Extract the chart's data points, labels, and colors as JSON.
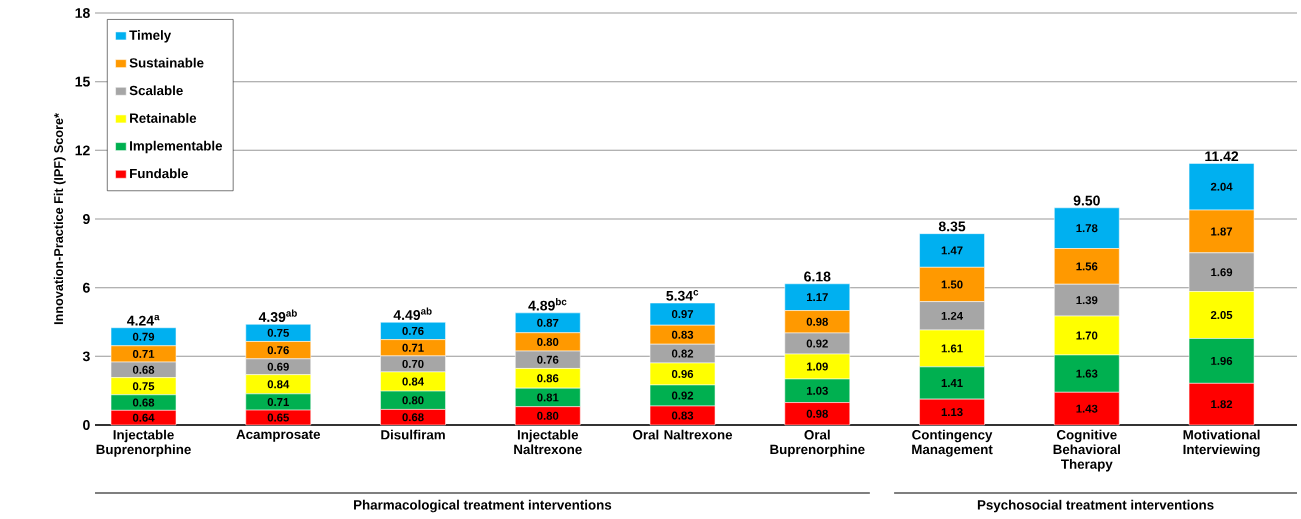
{
  "chart_data": {
    "type": "bar",
    "stacked": true,
    "ylabel": "Innovation-Practice Fit (IPF) Score*",
    "categories": [
      "Injectable Buprenorphine",
      "Acamprosate",
      "Disulfiram",
      "Injectable Naltrexone",
      "Oral Naltrexone",
      "Oral Buprenorphine",
      "Contingency Management",
      "Cognitive Behavioral Therapy",
      "Motivational Interviewing"
    ],
    "series": [
      {
        "name": "Fundable",
        "color": "#ff0000",
        "values": [
          0.64,
          0.65,
          0.68,
          0.8,
          0.83,
          0.98,
          1.13,
          1.43,
          1.82
        ],
        "value_labels": [
          "0.64",
          "0.65",
          "0.68",
          "0.80",
          "0.83",
          "0.98",
          "1.13",
          "1.43",
          "1.82"
        ]
      },
      {
        "name": "Implementable",
        "color": "#00b050",
        "values": [
          0.68,
          0.71,
          0.8,
          0.81,
          0.92,
          1.03,
          1.41,
          1.63,
          1.96
        ],
        "value_labels": [
          "0.68",
          "0.71",
          "0.80",
          "0.81",
          "0.92",
          "1.03",
          "1.41",
          "1.63",
          "1.96"
        ]
      },
      {
        "name": "Retainable",
        "color": "#ffff00",
        "values": [
          0.75,
          0.84,
          0.84,
          0.86,
          0.96,
          1.09,
          1.61,
          1.7,
          2.05
        ],
        "value_labels": [
          "0.75",
          "0.84",
          "0.84",
          "0.86",
          "0.96",
          "1.09",
          "1.61",
          "1.70",
          "2.05"
        ]
      },
      {
        "name": "Scalable",
        "color": "#a6a6a6",
        "values": [
          0.68,
          0.69,
          0.7,
          0.76,
          0.82,
          0.92,
          1.24,
          1.39,
          1.69
        ],
        "value_labels": [
          "0.68",
          "0.69",
          "0.70",
          "0.76",
          "0.82",
          "0.92",
          "1.24",
          "1.39",
          "1.69"
        ]
      },
      {
        "name": "Sustainable",
        "color": "#ff9900",
        "values": [
          0.71,
          0.76,
          0.71,
          0.8,
          0.83,
          0.98,
          1.5,
          1.56,
          1.87
        ],
        "value_labels": [
          "0.71",
          "0.76",
          "0.71",
          "0.80",
          "0.83",
          "0.98",
          "1.50",
          "1.56",
          "1.87"
        ]
      },
      {
        "name": "Timely",
        "color": "#00b0f0",
        "values": [
          0.79,
          0.75,
          0.76,
          0.87,
          0.97,
          1.17,
          1.47,
          1.78,
          2.04
        ],
        "value_labels": [
          "0.79",
          "0.75",
          "0.76",
          "0.87",
          "0.97",
          "1.17",
          "1.47",
          "1.78",
          "2.04"
        ]
      }
    ],
    "totals": [
      "4.24$^{a}$",
      "4.39$^{ab}$",
      "4.49$^{ab}$",
      "4.89$^{bc}$",
      "5.34$^{c}$",
      "6.18",
      "8.35",
      "9.50",
      "11.42"
    ],
    "ylim": [
      0,
      18
    ],
    "yticks": [
      0,
      3,
      6,
      9,
      12,
      15,
      18
    ],
    "grid": "y",
    "legend": "top left",
    "annotations": [
      "Pharmacological treatment interventions",
      "Psychosocial treatment interventions"
    ]
  }
}
